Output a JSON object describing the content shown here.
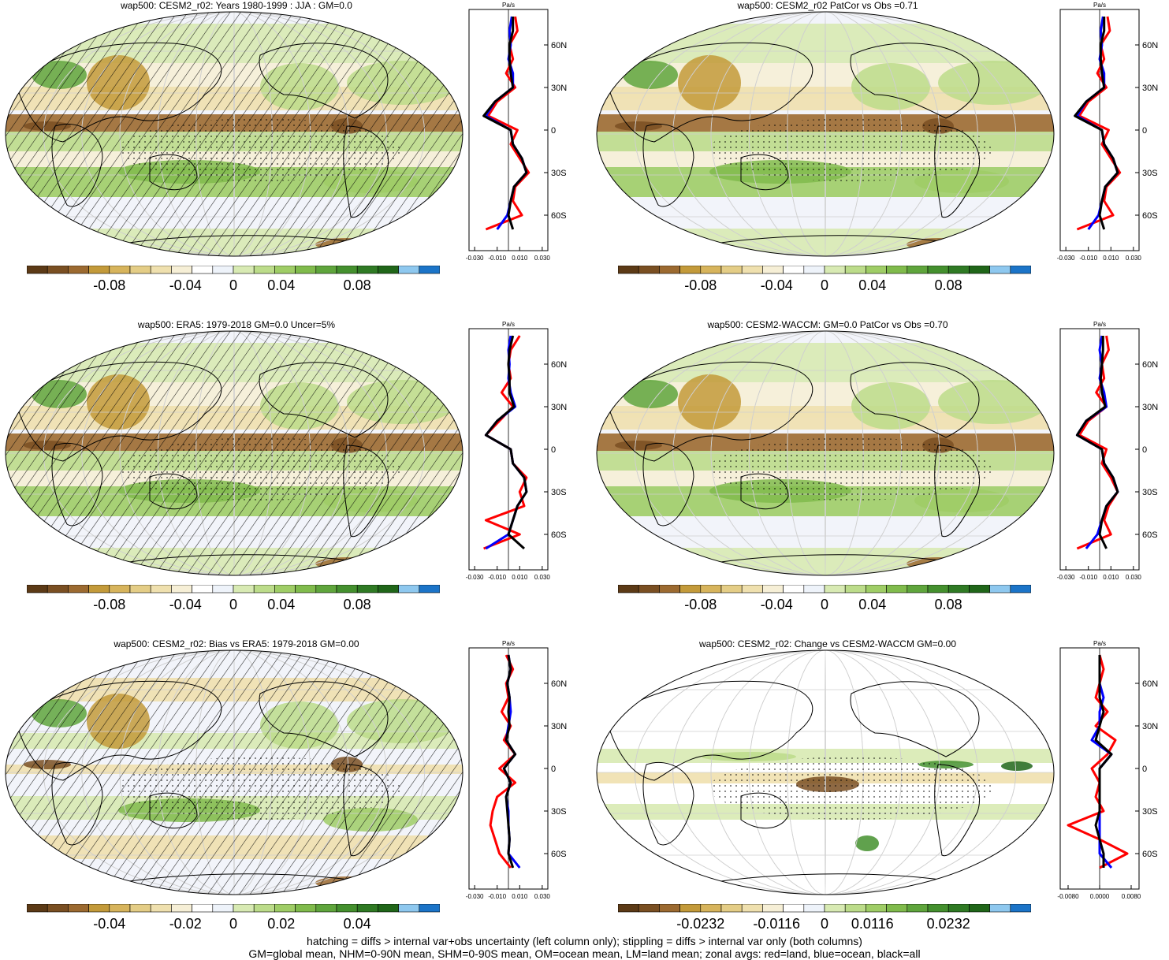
{
  "footer": {
    "line1": "hatching = diffs > internal var+obs uncertainty (left column only); stippling = diffs > internal var only (both columns)",
    "line2": "GM=global mean, NHM=0-90N mean, SHM=0-90S mean, OM=ocean mean, LM=land mean; zonal avgs: red=land, blue=ocean, black=all"
  },
  "colors": {
    "land": "#ff0000",
    "ocean": "#0000ff",
    "all": "#000000",
    "colorbar": [
      "#5c3a16",
      "#7a4f22",
      "#9c6a30",
      "#c39a3a",
      "#d7b45c",
      "#e4cd86",
      "#efe0ae",
      "#f6efd6",
      "#ffffff",
      "#eef3fa",
      "#d8eab3",
      "#bcdc8a",
      "#9fcd66",
      "#80bb4c",
      "#5fa53c",
      "#44902e",
      "#2f7a24",
      "#206619",
      "#8ec8ef",
      "#1b74c8"
    ]
  },
  "chart_data": [
    {
      "type": "heatmap",
      "title": "wap500: CESM2_r02: Years 1980-1999 : JJA : GM=0.0",
      "colorbar_ticks": [
        "-0.08",
        "-0.04",
        "0",
        "0.04",
        "0.08"
      ],
      "zonal_profile": {
        "unit": "Pa/s",
        "x_ticks": [
          "-0.030",
          "-0.010",
          "0.010",
          "0.030"
        ],
        "y_ticks": [
          "60N",
          "30N",
          "0",
          "30S",
          "60S"
        ],
        "lat": [
          80,
          70,
          60,
          50,
          40,
          30,
          20,
          10,
          0,
          -10,
          -20,
          -30,
          -40,
          -50,
          -60,
          -70
        ],
        "series": [
          {
            "name": "land",
            "values": [
              0.006,
              0.008,
              0.001,
              0.004,
              -0.002,
              0.006,
              -0.01,
              -0.018,
              0.008,
              0.002,
              0.01,
              0.018,
              0.006,
              0.004,
              0.012,
              -0.02
            ]
          },
          {
            "name": "ocean",
            "values": [
              0.003,
              0.001,
              0.002,
              0.0,
              0.004,
              0.004,
              -0.012,
              -0.02,
              0.002,
              0.004,
              0.012,
              0.016,
              0.005,
              0.002,
              -0.001,
              -0.01
            ]
          },
          {
            "name": "all",
            "values": [
              0.004,
              0.004,
              0.001,
              0.001,
              0.002,
              0.004,
              -0.012,
              -0.022,
              0.002,
              0.004,
              0.012,
              0.016,
              0.005,
              0.002,
              0.0,
              0.004
            ]
          }
        ]
      }
    },
    {
      "type": "heatmap",
      "title": "wap500: CESM2_r02 PatCor vs Obs =0.71",
      "colorbar_ticks": [
        "-0.08",
        "-0.04",
        "0",
        "0.04",
        "0.08"
      ],
      "zonal_profile": {
        "unit": "Pa/s",
        "x_ticks": [
          "-0.030",
          "-0.010",
          "0.010",
          "0.030"
        ],
        "y_ticks": [
          "60N",
          "30N",
          "0",
          "30S",
          "60S"
        ],
        "lat": [
          80,
          70,
          60,
          50,
          40,
          30,
          20,
          10,
          0,
          -10,
          -20,
          -30,
          -40,
          -50,
          -60,
          -70
        ],
        "series": [
          {
            "name": "land",
            "values": [
              0.007,
              0.009,
              0.001,
              0.004,
              -0.002,
              0.006,
              -0.01,
              -0.018,
              0.008,
              0.002,
              0.01,
              0.018,
              0.006,
              0.004,
              0.012,
              -0.02
            ]
          },
          {
            "name": "ocean",
            "values": [
              0.003,
              0.001,
              0.002,
              0.0,
              0.004,
              0.004,
              -0.012,
              -0.02,
              0.002,
              0.004,
              0.012,
              0.016,
              0.005,
              0.002,
              -0.001,
              -0.01
            ]
          },
          {
            "name": "all",
            "values": [
              0.004,
              0.004,
              0.001,
              0.001,
              0.002,
              0.004,
              -0.012,
              -0.022,
              0.002,
              0.004,
              0.012,
              0.016,
              0.005,
              0.002,
              0.0,
              0.004
            ]
          }
        ]
      }
    },
    {
      "type": "heatmap",
      "title": "wap500: ERA5: 1979-2018 GM=0.0 Uncer=5%",
      "colorbar_ticks": [
        "-0.08",
        "-0.04",
        "0",
        "0.04",
        "0.08"
      ],
      "zonal_profile": {
        "unit": "Pa/s",
        "x_ticks": [
          "-0.030",
          "-0.010",
          "0.010",
          "0.030"
        ],
        "y_ticks": [
          "60N",
          "30N",
          "0",
          "30S",
          "60S"
        ],
        "lat": [
          80,
          70,
          60,
          50,
          40,
          30,
          20,
          10,
          0,
          -10,
          -20,
          -30,
          -40,
          -50,
          -60,
          -70
        ],
        "series": [
          {
            "name": "land",
            "values": [
              0.01,
              0.002,
              0.0,
              0.002,
              -0.006,
              0.004,
              -0.008,
              -0.02,
              0.002,
              0.004,
              0.016,
              0.01,
              0.014,
              -0.02,
              0.01,
              -0.022
            ]
          },
          {
            "name": "ocean",
            "values": [
              0.002,
              0.0,
              0.001,
              0.0,
              0.002,
              0.006,
              -0.01,
              -0.02,
              0.002,
              0.004,
              0.014,
              0.016,
              0.008,
              0.004,
              0.0,
              -0.02
            ]
          },
          {
            "name": "all",
            "values": [
              0.004,
              0.001,
              0.0,
              0.001,
              0.001,
              0.005,
              -0.01,
              -0.02,
              0.002,
              0.004,
              0.014,
              0.016,
              0.008,
              0.004,
              0.0,
              0.014
            ]
          }
        ]
      }
    },
    {
      "type": "heatmap",
      "title": "wap500: CESM2-WACCM: GM=0.0 PatCor vs Obs =0.70",
      "colorbar_ticks": [
        "-0.08",
        "-0.04",
        "0",
        "0.04",
        "0.08"
      ],
      "zonal_profile": {
        "unit": "Pa/s",
        "x_ticks": [
          "-0.030",
          "-0.010",
          "0.010",
          "0.030"
        ],
        "y_ticks": [
          "60N",
          "30N",
          "0",
          "30S",
          "60S"
        ],
        "lat": [
          80,
          70,
          60,
          50,
          40,
          30,
          20,
          10,
          0,
          -10,
          -20,
          -30,
          -40,
          -50,
          -60,
          -70
        ],
        "series": [
          {
            "name": "land",
            "values": [
              0.006,
              0.008,
              0.002,
              0.004,
              -0.003,
              0.006,
              -0.01,
              -0.018,
              0.006,
              0.002,
              0.01,
              0.016,
              0.008,
              0.004,
              0.01,
              -0.02
            ]
          },
          {
            "name": "ocean",
            "values": [
              0.002,
              0.0,
              0.002,
              0.0,
              0.004,
              0.006,
              -0.012,
              -0.02,
              0.002,
              0.004,
              0.012,
              0.016,
              0.006,
              0.002,
              -0.002,
              -0.012
            ]
          },
          {
            "name": "all",
            "values": [
              0.003,
              0.003,
              0.002,
              0.001,
              0.002,
              0.005,
              -0.012,
              -0.02,
              0.002,
              0.004,
              0.012,
              0.016,
              0.006,
              0.002,
              0.0,
              0.006
            ]
          }
        ]
      }
    },
    {
      "type": "heatmap",
      "title": "wap500: CESM2_r02: Bias vs ERA5: 1979-2018 GM=0.00",
      "colorbar_ticks": [
        "-0.04",
        "-0.02",
        "0",
        "0.02",
        "0.04"
      ],
      "zonal_profile": {
        "unit": "Pa/s",
        "x_ticks": [
          "-0.030",
          "-0.010",
          "0.010",
          "0.030"
        ],
        "y_ticks": [
          "60N",
          "30N",
          "0",
          "30S",
          "60S"
        ],
        "lat": [
          80,
          70,
          60,
          50,
          40,
          30,
          20,
          10,
          0,
          -10,
          -20,
          -30,
          -40,
          -50,
          -60,
          -70
        ],
        "series": [
          {
            "name": "land",
            "values": [
              -0.002,
              0.004,
              -0.002,
              0.0,
              -0.006,
              0.002,
              -0.004,
              0.006,
              -0.008,
              0.006,
              -0.01,
              -0.014,
              -0.016,
              -0.012,
              -0.008,
              0.002
            ]
          },
          {
            "name": "ocean",
            "values": [
              0.0,
              0.002,
              -0.001,
              0.001,
              0.002,
              0.0,
              -0.002,
              0.006,
              -0.004,
              0.002,
              -0.002,
              0.0,
              0.0,
              0.001,
              0.0,
              0.01
            ]
          },
          {
            "name": "all",
            "values": [
              0.0,
              0.002,
              -0.001,
              0.001,
              0.0,
              0.001,
              -0.002,
              0.006,
              -0.004,
              0.002,
              -0.002,
              -0.001,
              0.0,
              0.001,
              0.0,
              0.004
            ]
          }
        ]
      }
    },
    {
      "type": "heatmap",
      "title": "wap500: CESM2_r02: Change vs CESM2-WACCM GM=0.00",
      "colorbar_ticks": [
        "-0.0232",
        "-0.0116",
        "0",
        "0.0116",
        "0.0232"
      ],
      "zonal_profile": {
        "unit": "Pa/s",
        "x_ticks": [
          "-0.0080",
          "0.0000",
          "0.0080"
        ],
        "y_ticks": [
          "60N",
          "30N",
          "0",
          "30S",
          "60S"
        ],
        "lat": [
          80,
          70,
          60,
          50,
          40,
          30,
          20,
          10,
          0,
          -10,
          -20,
          -30,
          -40,
          -50,
          -60,
          -70
        ],
        "series": [
          {
            "name": "land",
            "values": [
              0.0,
              0.001,
              0.0,
              -0.001,
              0.002,
              -0.001,
              0.004,
              0.002,
              -0.002,
              0.0,
              -0.001,
              0.001,
              -0.008,
              0.0,
              0.007,
              0.0
            ]
          },
          {
            "name": "ocean",
            "values": [
              0.0,
              0.0,
              0.0,
              0.001,
              0.0,
              0.0,
              -0.002,
              0.003,
              0.0,
              0.0,
              0.0,
              0.0,
              0.0,
              0.0,
              0.0,
              0.003
            ]
          },
          {
            "name": "all",
            "values": [
              0.0,
              0.0,
              0.0,
              0.0,
              0.001,
              0.0,
              -0.001,
              0.003,
              0.0,
              0.0,
              0.0,
              0.0,
              -0.001,
              0.0,
              0.001,
              0.001
            ]
          }
        ]
      }
    }
  ]
}
